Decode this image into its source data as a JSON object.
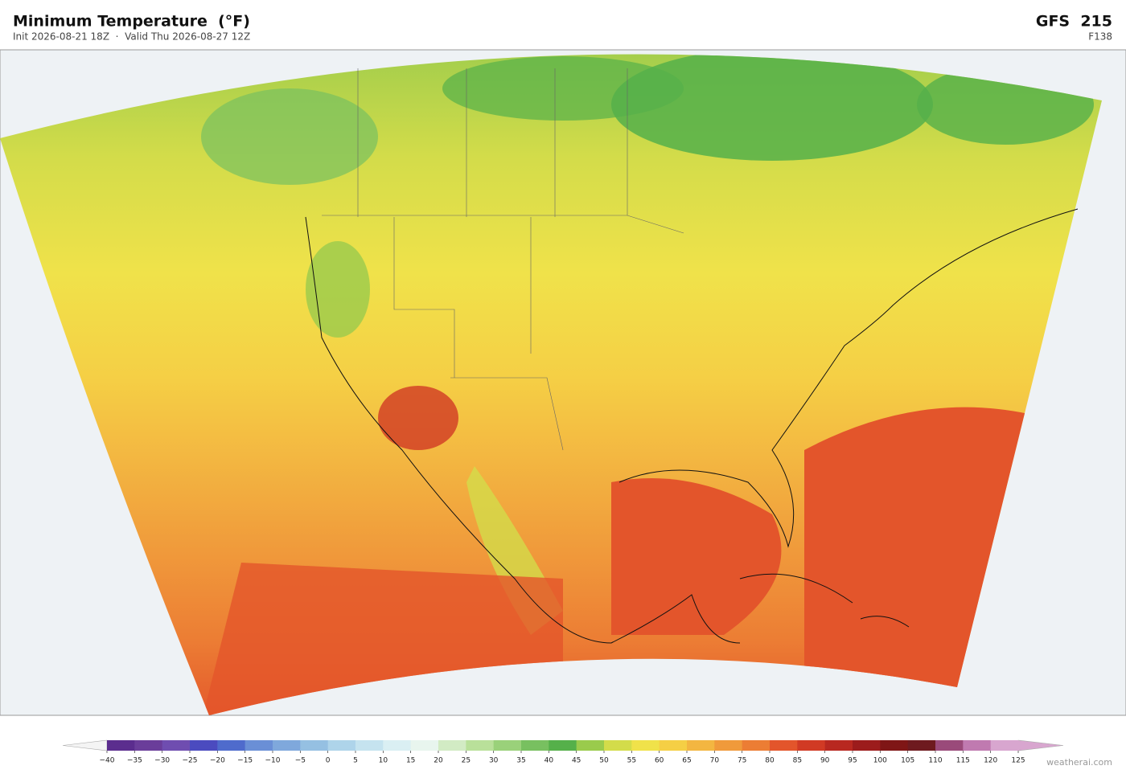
{
  "header": {
    "title": "Minimum Temperature  (°F)",
    "subtitle": "Init 2026-08-21 18Z  ·  Valid Thu 2026-08-27 12Z",
    "model": "GFS  215",
    "forecast_hour": "F138"
  },
  "colorbar": {
    "ticks": [
      {
        "value": -40,
        "label": "−40"
      },
      {
        "value": -35,
        "label": "−35"
      },
      {
        "value": -30,
        "label": "−30"
      },
      {
        "value": -25,
        "label": "−25"
      },
      {
        "value": -20,
        "label": "−20"
      },
      {
        "value": -15,
        "label": "−15"
      },
      {
        "value": -10,
        "label": "−10"
      },
      {
        "value": -5,
        "label": "−5"
      },
      0,
      5,
      10,
      15,
      20,
      25,
      30,
      35,
      40,
      45,
      50,
      55,
      60,
      65,
      70,
      75,
      80,
      85,
      90,
      95,
      100,
      105,
      110,
      115,
      120,
      125
    ],
    "colors": [
      "#5b2d8e",
      "#6a3d9a",
      "#6f4db0",
      "#4b4bbf",
      "#4f6bcc",
      "#6a8fd6",
      "#7fa8dc",
      "#95c0e2",
      "#aed4ea",
      "#c5e3ef",
      "#daeff3",
      "#e8f5ee",
      "#d2ebc4",
      "#b9e09a",
      "#9ad17a",
      "#78c060",
      "#55b04a",
      "#9acb4c",
      "#d3dc4a",
      "#f0e24a",
      "#f5cf45",
      "#f3b641",
      "#f09a3b",
      "#ec7d34",
      "#e3552b",
      "#d13a24",
      "#b82820",
      "#9c1c1c",
      "#7f1616",
      "#6e1a1f",
      "#9a4a7a",
      "#c07ab0",
      "#d8a6cf"
    ],
    "under_color": "#f4f4f4",
    "over_color": "#d8a6cf"
  },
  "watermark": "weatherai.com"
}
